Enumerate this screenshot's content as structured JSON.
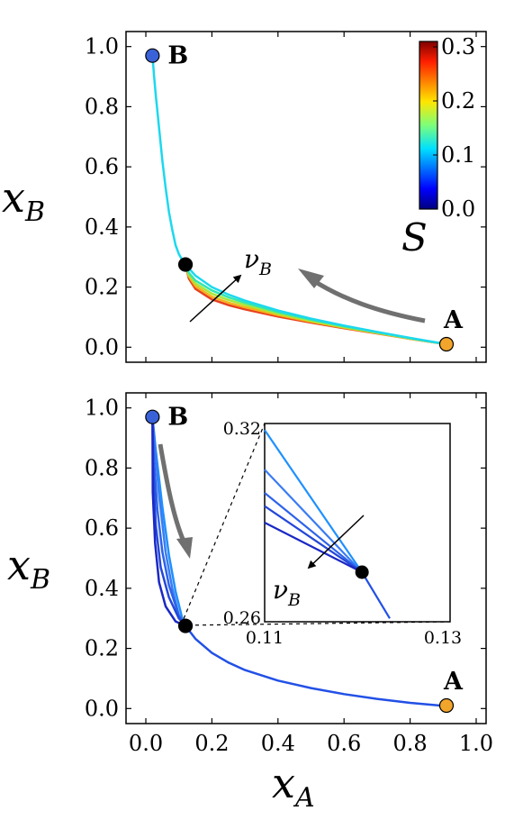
{
  "chart_data": [
    {
      "type": "line",
      "panel": "top",
      "xlabel": "x_A",
      "ylabel": "x_B",
      "xlim": [
        -0.06,
        1.03
      ],
      "ylim": [
        -0.05,
        1.05
      ],
      "xticks": [],
      "yticks": [
        "0.0",
        "0.2",
        "0.4",
        "0.6",
        "0.8",
        "1.0"
      ],
      "ytick_values": [
        0.0,
        0.2,
        0.4,
        0.6,
        0.8,
        1.0
      ],
      "points": [
        {
          "label": "B",
          "x": 0.02,
          "y": 0.97,
          "color": "#3a62d8"
        },
        {
          "label": "A",
          "x": 0.91,
          "y": 0.01,
          "color": "#f2a52b"
        },
        {
          "label": "",
          "x": 0.12,
          "y": 0.275,
          "color": "#000000"
        }
      ],
      "series": [
        {
          "S": 0.0,
          "color": "#1cd8ee",
          "x": [
            0.02,
            0.025,
            0.03,
            0.04,
            0.05,
            0.06,
            0.07,
            0.08,
            0.09,
            0.1,
            0.11,
            0.12,
            0.15,
            0.2,
            0.25,
            0.3,
            0.4,
            0.5,
            0.6,
            0.7,
            0.8,
            0.91
          ],
          "y": [
            0.97,
            0.9,
            0.84,
            0.73,
            0.62,
            0.53,
            0.45,
            0.39,
            0.34,
            0.31,
            0.29,
            0.275,
            0.238,
            0.2,
            0.175,
            0.155,
            0.122,
            0.095,
            0.072,
            0.051,
            0.031,
            0.01
          ]
        },
        {
          "S": 0.08,
          "color": "#33e6b0",
          "x": [
            0.12,
            0.13,
            0.15,
            0.2,
            0.25,
            0.3,
            0.4,
            0.5,
            0.6,
            0.7,
            0.8,
            0.91
          ],
          "y": [
            0.275,
            0.248,
            0.222,
            0.189,
            0.166,
            0.148,
            0.117,
            0.092,
            0.07,
            0.05,
            0.03,
            0.01
          ]
        },
        {
          "S": 0.16,
          "color": "#a6e83a",
          "x": [
            0.12,
            0.13,
            0.15,
            0.2,
            0.25,
            0.3,
            0.4,
            0.5,
            0.6,
            0.7,
            0.8,
            0.91
          ],
          "y": [
            0.275,
            0.242,
            0.212,
            0.178,
            0.157,
            0.141,
            0.112,
            0.088,
            0.067,
            0.048,
            0.029,
            0.01
          ]
        },
        {
          "S": 0.24,
          "color": "#f5b21a",
          "x": [
            0.12,
            0.13,
            0.15,
            0.2,
            0.25,
            0.3,
            0.4,
            0.5,
            0.6,
            0.7,
            0.8,
            0.91
          ],
          "y": [
            0.275,
            0.236,
            0.203,
            0.168,
            0.148,
            0.133,
            0.107,
            0.085,
            0.065,
            0.047,
            0.028,
            0.01
          ]
        },
        {
          "S": 0.31,
          "color": "#e8401c",
          "x": [
            0.12,
            0.13,
            0.15,
            0.2,
            0.25,
            0.3,
            0.4,
            0.5,
            0.6,
            0.7,
            0.8,
            0.91
          ],
          "y": [
            0.275,
            0.229,
            0.194,
            0.159,
            0.14,
            0.126,
            0.102,
            0.082,
            0.063,
            0.046,
            0.028,
            0.01
          ]
        }
      ],
      "annotation": "ν_B",
      "colorbar": {
        "label": "S",
        "ticks": [
          "0.0",
          "0.1",
          "0.2",
          "0.3"
        ],
        "tick_values": [
          0.0,
          0.1,
          0.2,
          0.3
        ],
        "range": [
          0.0,
          0.31
        ],
        "cmap": "jet"
      }
    },
    {
      "type": "line",
      "panel": "bottom",
      "xlabel": "x_A",
      "ylabel": "x_B",
      "xlim": [
        -0.06,
        1.03
      ],
      "ylim": [
        -0.05,
        1.05
      ],
      "xticks": [
        "0.0",
        "0.2",
        "0.4",
        "0.6",
        "0.8",
        "1.0"
      ],
      "xtick_values": [
        0.0,
        0.2,
        0.4,
        0.6,
        0.8,
        1.0
      ],
      "yticks": [
        "0.0",
        "0.2",
        "0.4",
        "0.6",
        "0.8",
        "1.0"
      ],
      "ytick_values": [
        0.0,
        0.2,
        0.4,
        0.6,
        0.8,
        1.0
      ],
      "points": [
        {
          "label": "B",
          "x": 0.02,
          "y": 0.97,
          "color": "#3a62d8"
        },
        {
          "label": "A",
          "x": 0.91,
          "y": 0.01,
          "color": "#f2a52b"
        },
        {
          "label": "",
          "x": 0.12,
          "y": 0.275,
          "color": "#000000"
        }
      ],
      "series": [
        {
          "color": "#2250e6",
          "x": [
            0.12,
            0.15,
            0.2,
            0.25,
            0.3,
            0.4,
            0.5,
            0.6,
            0.7,
            0.8,
            0.91
          ],
          "y": [
            0.275,
            0.232,
            0.185,
            0.153,
            0.128,
            0.093,
            0.068,
            0.048,
            0.032,
            0.019,
            0.008
          ]
        },
        {
          "color": "#1e90ff",
          "x": [
            0.02,
            0.03,
            0.05,
            0.07,
            0.09,
            0.11,
            0.12
          ],
          "y": [
            0.97,
            0.86,
            0.67,
            0.51,
            0.39,
            0.3,
            0.275
          ]
        },
        {
          "color": "#3a7cf2",
          "x": [
            0.02,
            0.03,
            0.04,
            0.06,
            0.08,
            0.1,
            0.12
          ],
          "y": [
            0.97,
            0.84,
            0.71,
            0.52,
            0.4,
            0.31,
            0.275
          ]
        },
        {
          "color": "#2d62ea",
          "x": [
            0.02,
            0.025,
            0.035,
            0.05,
            0.07,
            0.1,
            0.12
          ],
          "y": [
            0.97,
            0.82,
            0.66,
            0.52,
            0.41,
            0.31,
            0.275
          ]
        },
        {
          "color": "#2448d8",
          "x": [
            0.02,
            0.022,
            0.03,
            0.045,
            0.07,
            0.1,
            0.12
          ],
          "y": [
            0.97,
            0.8,
            0.61,
            0.47,
            0.37,
            0.3,
            0.275
          ]
        },
        {
          "color": "#1a28c4",
          "x": [
            0.02,
            0.021,
            0.028,
            0.04,
            0.06,
            0.09,
            0.12
          ],
          "y": [
            0.97,
            0.72,
            0.55,
            0.42,
            0.34,
            0.29,
            0.275
          ]
        }
      ],
      "inset": {
        "xlim": [
          0.11,
          0.13
        ],
        "ylim": [
          0.26,
          0.32
        ],
        "xticks": [
          "0.11",
          "0.13"
        ],
        "yticks": [
          "0.26",
          "0.32"
        ],
        "annotation": "ν_B",
        "point": {
          "x": 0.1205,
          "y": 0.275
        },
        "series": [
          {
            "color": "#1e90ff",
            "x": [
              0.11,
              0.1205
            ],
            "y": [
              0.318,
              0.275
            ]
          },
          {
            "color": "#3a7cf2",
            "x": [
              0.11,
              0.1205
            ],
            "y": [
              0.306,
              0.275
            ]
          },
          {
            "color": "#2d62ea",
            "x": [
              0.11,
              0.1205
            ],
            "y": [
              0.299,
              0.275
            ]
          },
          {
            "color": "#2448d8",
            "x": [
              0.11,
              0.1205
            ],
            "y": [
              0.295,
              0.275
            ]
          },
          {
            "color": "#1a28c4",
            "x": [
              0.11,
              0.1205
            ],
            "y": [
              0.29,
              0.275
            ]
          },
          {
            "color": "#2250e6",
            "x": [
              0.1205,
              0.1235
            ],
            "y": [
              0.275,
              0.261
            ]
          }
        ]
      }
    }
  ]
}
